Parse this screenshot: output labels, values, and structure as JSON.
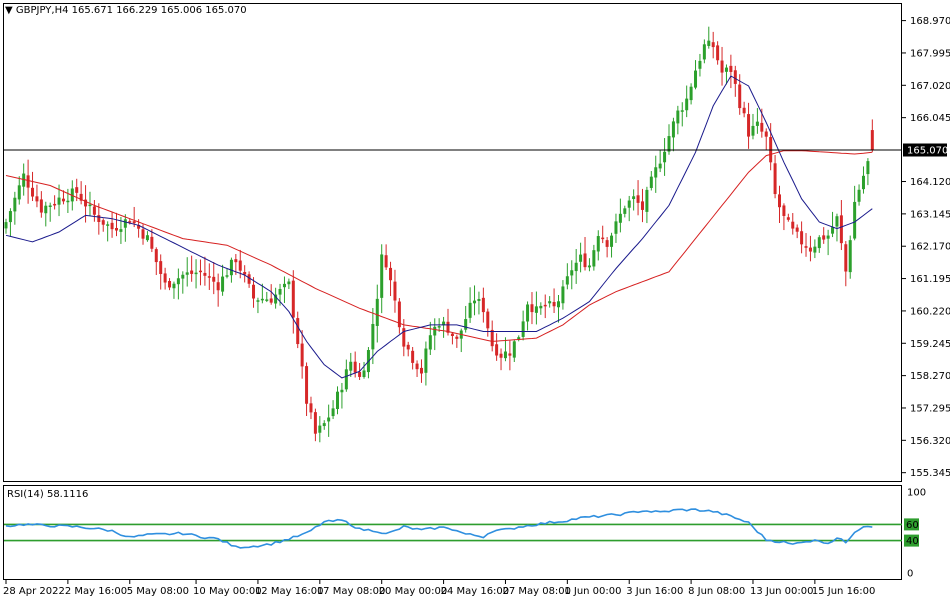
{
  "header": {
    "symbol_timeframe": "GBPJPY,H4",
    "ohlc": "165.671 166.229 165.006 165.070"
  },
  "price_axis": {
    "ticks": [
      "168.970",
      "167.995",
      "167.020",
      "166.045",
      "165.070",
      "164.120",
      "163.145",
      "162.170",
      "161.195",
      "160.220",
      "159.245",
      "158.270",
      "157.295",
      "156.320",
      "155.345"
    ],
    "current_price": "165.070"
  },
  "time_axis": {
    "labels": [
      "28 Apr 2022",
      "2 May 16:00",
      "5 May 08:00",
      "10 May 00:00",
      "12 May 16:00",
      "17 May 08:00",
      "20 May 00:00",
      "24 May 16:00",
      "27 May 08:00",
      "1 Jun 00:00",
      "3 Jun 16:00",
      "8 Jun 08:00",
      "13 Jun 00:00",
      "15 Jun 16:00"
    ]
  },
  "rsi": {
    "label": "RSI(14) 58.1116",
    "scale": [
      "100",
      "60",
      "40",
      "0"
    ]
  },
  "colors": {
    "bull": "#2ca02c",
    "bear": "#d62728",
    "ma_fast": "#1a1a8c",
    "ma_slow": "#d62020",
    "rsi_line": "#2f8fdf",
    "rsi_level": "#2e9d2e"
  },
  "chart_data": {
    "type": "candlestick",
    "symbol": "GBPJPY",
    "timeframe": "H4",
    "ylim": [
      155.345,
      169.3
    ],
    "close_path": [
      [
        0,
        162.9
      ],
      [
        4,
        164.3
      ],
      [
        8,
        163.3
      ],
      [
        12,
        163.6
      ],
      [
        16,
        163.8
      ],
      [
        20,
        163.1
      ],
      [
        24,
        162.7
      ],
      [
        28,
        163.0
      ],
      [
        32,
        162.4
      ],
      [
        36,
        161.0
      ],
      [
        40,
        161.3
      ],
      [
        44,
        161.4
      ],
      [
        48,
        161.0
      ],
      [
        52,
        161.8
      ],
      [
        56,
        160.6
      ],
      [
        60,
        160.6
      ],
      [
        64,
        161.0
      ],
      [
        66,
        159.3
      ],
      [
        68,
        157.5
      ],
      [
        70,
        156.5
      ],
      [
        72,
        156.8
      ],
      [
        74,
        157.3
      ],
      [
        76,
        158.0
      ],
      [
        78,
        158.7
      ],
      [
        80,
        158.2
      ],
      [
        82,
        159.0
      ],
      [
        84,
        160.7
      ],
      [
        85,
        161.8
      ],
      [
        86,
        161.7
      ],
      [
        88,
        160.5
      ],
      [
        90,
        159.3
      ],
      [
        92,
        158.8
      ],
      [
        94,
        158.4
      ],
      [
        96,
        159.5
      ],
      [
        98,
        159.9
      ],
      [
        100,
        159.7
      ],
      [
        102,
        159.3
      ],
      [
        104,
        160.0
      ],
      [
        106,
        160.6
      ],
      [
        108,
        160.3
      ],
      [
        110,
        159.2
      ],
      [
        112,
        158.9
      ],
      [
        114,
        159.0
      ],
      [
        116,
        159.5
      ],
      [
        118,
        160.5
      ],
      [
        120,
        160.2
      ],
      [
        122,
        160.4
      ],
      [
        124,
        160.3
      ],
      [
        126,
        160.8
      ],
      [
        128,
        161.5
      ],
      [
        130,
        161.8
      ],
      [
        132,
        161.6
      ],
      [
        134,
        162.6
      ],
      [
        136,
        162.3
      ],
      [
        138,
        162.8
      ],
      [
        140,
        163.4
      ],
      [
        142,
        163.6
      ],
      [
        144,
        163.3
      ],
      [
        146,
        164.1
      ],
      [
        148,
        164.8
      ],
      [
        150,
        165.5
      ],
      [
        152,
        166.2
      ],
      [
        154,
        166.6
      ],
      [
        156,
        167.5
      ],
      [
        158,
        168.2
      ],
      [
        160,
        168.2
      ],
      [
        162,
        167.4
      ],
      [
        164,
        167.5
      ],
      [
        166,
        166.5
      ],
      [
        168,
        165.6
      ],
      [
        170,
        165.8
      ],
      [
        172,
        165.4
      ],
      [
        174,
        163.7
      ],
      [
        176,
        163.0
      ],
      [
        178,
        162.6
      ],
      [
        180,
        162.3
      ],
      [
        182,
        162.1
      ],
      [
        184,
        162.4
      ],
      [
        186,
        162.5
      ],
      [
        188,
        163.0
      ],
      [
        190,
        161.4
      ],
      [
        192,
        163.5
      ],
      [
        194,
        164.3
      ],
      [
        196,
        165.07
      ]
    ],
    "ma_fast_path": [
      [
        0,
        162.5
      ],
      [
        6,
        162.3
      ],
      [
        12,
        162.6
      ],
      [
        18,
        163.1
      ],
      [
        24,
        163.0
      ],
      [
        30,
        162.8
      ],
      [
        36,
        162.4
      ],
      [
        42,
        162.0
      ],
      [
        48,
        161.6
      ],
      [
        54,
        161.3
      ],
      [
        60,
        160.8
      ],
      [
        64,
        160.2
      ],
      [
        68,
        159.3
      ],
      [
        72,
        158.6
      ],
      [
        76,
        158.2
      ],
      [
        80,
        158.4
      ],
      [
        84,
        159.0
      ],
      [
        90,
        159.6
      ],
      [
        96,
        159.8
      ],
      [
        102,
        159.8
      ],
      [
        108,
        159.6
      ],
      [
        114,
        159.6
      ],
      [
        120,
        159.6
      ],
      [
        126,
        160.0
      ],
      [
        132,
        160.5
      ],
      [
        138,
        161.5
      ],
      [
        144,
        162.4
      ],
      [
        150,
        163.4
      ],
      [
        156,
        165.0
      ],
      [
        160,
        166.4
      ],
      [
        164,
        167.3
      ],
      [
        168,
        167.0
      ],
      [
        172,
        165.9
      ],
      [
        176,
        164.7
      ],
      [
        180,
        163.6
      ],
      [
        184,
        162.9
      ],
      [
        188,
        162.7
      ],
      [
        192,
        162.9
      ],
      [
        196,
        163.3
      ]
    ],
    "ma_slow_path": [
      [
        0,
        164.3
      ],
      [
        10,
        164.0
      ],
      [
        20,
        163.4
      ],
      [
        30,
        162.9
      ],
      [
        40,
        162.4
      ],
      [
        50,
        162.2
      ],
      [
        60,
        161.6
      ],
      [
        70,
        160.9
      ],
      [
        80,
        160.3
      ],
      [
        90,
        159.8
      ],
      [
        100,
        159.6
      ],
      [
        110,
        159.3
      ],
      [
        120,
        159.4
      ],
      [
        126,
        159.8
      ],
      [
        132,
        160.4
      ],
      [
        138,
        160.8
      ],
      [
        144,
        161.1
      ],
      [
        150,
        161.4
      ],
      [
        156,
        162.4
      ],
      [
        162,
        163.4
      ],
      [
        168,
        164.4
      ],
      [
        172,
        164.9
      ],
      [
        176,
        165.05
      ],
      [
        180,
        165.05
      ],
      [
        186,
        165.0
      ],
      [
        192,
        164.95
      ],
      [
        196,
        165.0
      ]
    ],
    "rsi_series": [
      [
        0,
        58
      ],
      [
        4,
        60
      ],
      [
        8,
        59
      ],
      [
        12,
        58
      ],
      [
        16,
        57
      ],
      [
        20,
        55
      ],
      [
        24,
        52
      ],
      [
        28,
        44
      ],
      [
        32,
        47
      ],
      [
        36,
        48
      ],
      [
        40,
        49
      ],
      [
        44,
        45
      ],
      [
        48,
        42
      ],
      [
        52,
        32
      ],
      [
        56,
        33
      ],
      [
        60,
        36
      ],
      [
        64,
        42
      ],
      [
        68,
        49
      ],
      [
        72,
        63
      ],
      [
        76,
        65
      ],
      [
        78,
        60
      ],
      [
        80,
        54
      ],
      [
        84,
        52
      ],
      [
        86,
        48
      ],
      [
        88,
        52
      ],
      [
        90,
        57
      ],
      [
        94,
        53
      ],
      [
        98,
        56
      ],
      [
        100,
        56
      ],
      [
        104,
        48
      ],
      [
        108,
        45
      ],
      [
        110,
        52
      ],
      [
        114,
        54
      ],
      [
        116,
        57
      ],
      [
        120,
        60
      ],
      [
        124,
        63
      ],
      [
        126,
        64
      ],
      [
        130,
        68
      ],
      [
        134,
        70
      ],
      [
        140,
        73
      ],
      [
        144,
        77
      ],
      [
        148,
        75
      ],
      [
        152,
        78
      ],
      [
        156,
        78
      ],
      [
        160,
        76
      ],
      [
        164,
        70
      ],
      [
        168,
        62
      ],
      [
        172,
        41
      ],
      [
        176,
        38
      ],
      [
        178,
        35
      ],
      [
        180,
        39
      ],
      [
        184,
        40
      ],
      [
        186,
        37
      ],
      [
        188,
        43
      ],
      [
        190,
        38
      ],
      [
        192,
        51
      ],
      [
        194,
        58
      ],
      [
        196,
        58
      ]
    ],
    "rsi_levels": [
      60,
      40
    ]
  }
}
